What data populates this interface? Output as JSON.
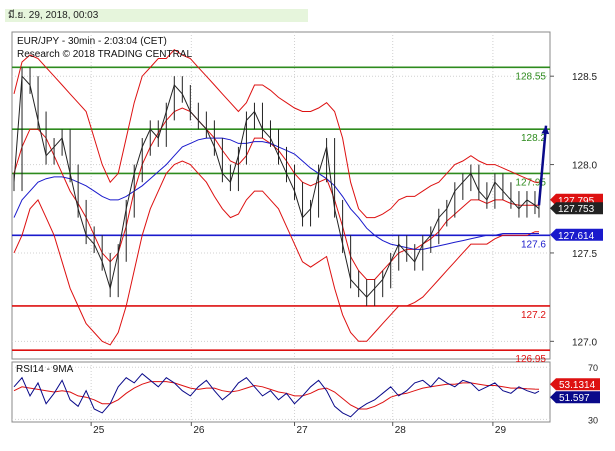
{
  "header": {
    "datestamp": "มี.ย. 29, 2018, 00:03"
  },
  "chart_data": {
    "type": "line",
    "title": "EUR/JPY - 30min - 2:03:04 (CET)",
    "subtitle": "Research © 2018 TRADING CENTRAL",
    "ylim": [
      126.9,
      128.75
    ],
    "yticks": [
      {
        "value": 128.5,
        "label": "128.5"
      },
      {
        "value": 128.0,
        "label": "128.0"
      },
      {
        "value": 127.5,
        "label": "127.5"
      },
      {
        "value": 127.0,
        "label": "127.0"
      }
    ],
    "xticks": [
      {
        "t": 0.19,
        "label": "25"
      },
      {
        "t": 1.19,
        "label": "26"
      },
      {
        "t": 2.22,
        "label": "27"
      },
      {
        "t": 3.2,
        "label": "28"
      },
      {
        "t": 4.2,
        "label": "29"
      }
    ],
    "xlim": [
      -0.6,
      4.77
    ],
    "levels": [
      {
        "value": 128.55,
        "label": "128.55",
        "color": "#2e8b1e",
        "kind": "resistance"
      },
      {
        "value": 128.2,
        "label": "128.2",
        "color": "#2e8b1e",
        "kind": "resistance"
      },
      {
        "value": 127.95,
        "label": "127.95",
        "color": "#2e8b1e",
        "kind": "resistance"
      },
      {
        "value": 127.6,
        "label": "127.6",
        "color": "#1a1acc",
        "kind": "pivot"
      },
      {
        "value": 127.2,
        "label": "127.2",
        "color": "#dd1111",
        "kind": "support"
      },
      {
        "value": 126.95,
        "label": "126.95",
        "color": "#dd1111",
        "kind": "support"
      }
    ],
    "price_tags": [
      {
        "value": 127.795,
        "label": "127.795",
        "color": "#dd1111"
      },
      {
        "value": 127.753,
        "label": "127.753",
        "color": "#222222"
      },
      {
        "value": 127.614,
        "label": "127.614",
        "color": "#1a1acc"
      }
    ],
    "arrow": {
      "from": {
        "t": 4.66,
        "y": 127.77
      },
      "to": {
        "t": 4.84,
        "y": 128.22
      },
      "color": "#0a0a8a"
    },
    "price_series": {
      "name": "EUR/JPY",
      "t": [
        -0.58,
        -0.5,
        -0.42,
        -0.34,
        -0.26,
        -0.18,
        -0.1,
        -0.02,
        0.06,
        0.14,
        0.22,
        0.3,
        0.38,
        0.46,
        0.54,
        0.62,
        0.7,
        0.78,
        0.86,
        0.94,
        1.02,
        1.1,
        1.18,
        1.26,
        1.34,
        1.42,
        1.5,
        1.58,
        1.66,
        1.74,
        1.82,
        1.9,
        1.98,
        2.06,
        2.14,
        2.22,
        2.3,
        2.38,
        2.46,
        2.54,
        2.62,
        2.7,
        2.78,
        2.86,
        2.94,
        3.02,
        3.1,
        3.18,
        3.26,
        3.34,
        3.42,
        3.5,
        3.58,
        3.66,
        3.74,
        3.82,
        3.9,
        3.98,
        4.06,
        4.14,
        4.22,
        4.3,
        4.38,
        4.46,
        4.54,
        4.62,
        4.66
      ],
      "close": [
        127.9,
        128.5,
        128.45,
        128.25,
        128.05,
        128.1,
        128.15,
        127.95,
        127.75,
        127.6,
        127.55,
        127.45,
        127.3,
        127.5,
        127.75,
        127.95,
        128.1,
        128.2,
        128.15,
        128.3,
        128.45,
        128.4,
        128.3,
        128.25,
        128.2,
        128.1,
        127.95,
        127.9,
        128.05,
        128.25,
        128.3,
        128.2,
        128.15,
        128.05,
        127.95,
        127.85,
        127.7,
        127.75,
        127.95,
        128.1,
        127.75,
        127.55,
        127.35,
        127.3,
        127.25,
        127.3,
        127.35,
        127.45,
        127.55,
        127.5,
        127.45,
        127.55,
        127.6,
        127.7,
        127.75,
        127.85,
        127.9,
        127.95,
        127.85,
        127.8,
        127.9,
        127.85,
        127.8,
        127.75,
        127.8,
        127.77,
        127.75
      ]
    },
    "bollinger": {
      "upper": [
        128.4,
        128.58,
        128.62,
        128.6,
        128.55,
        128.5,
        128.45,
        128.4,
        128.35,
        128.3,
        128.15,
        128.0,
        127.9,
        127.95,
        128.15,
        128.35,
        128.5,
        128.55,
        128.6,
        128.6,
        128.65,
        128.62,
        128.6,
        128.55,
        128.5,
        128.45,
        128.4,
        128.35,
        128.3,
        128.35,
        128.45,
        128.45,
        128.42,
        128.38,
        128.35,
        128.32,
        128.3,
        128.3,
        128.32,
        128.35,
        128.3,
        128.15,
        127.9,
        127.75,
        127.7,
        127.7,
        127.72,
        127.75,
        127.8,
        127.82,
        127.82,
        127.85,
        127.88,
        127.9,
        127.95,
        128.0,
        128.02,
        128.05,
        128.02,
        128.0,
        128.0,
        127.98,
        127.96,
        127.94,
        127.92,
        127.9,
        127.9
      ],
      "lower": [
        127.5,
        127.6,
        127.75,
        127.8,
        127.7,
        127.6,
        127.45,
        127.3,
        127.2,
        127.1,
        127.05,
        127.0,
        126.98,
        127.05,
        127.2,
        127.4,
        127.6,
        127.75,
        127.85,
        127.95,
        128.0,
        128.02,
        128.0,
        127.95,
        127.9,
        127.82,
        127.75,
        127.7,
        127.72,
        127.8,
        127.85,
        127.85,
        127.8,
        127.75,
        127.65,
        127.55,
        127.45,
        127.42,
        127.45,
        127.48,
        127.3,
        127.15,
        127.05,
        127.0,
        127.0,
        127.05,
        127.1,
        127.15,
        127.2,
        127.2,
        127.22,
        127.25,
        127.3,
        127.35,
        127.4,
        127.45,
        127.5,
        127.55,
        127.55,
        127.55,
        127.58,
        127.6,
        127.6,
        127.6,
        127.6,
        127.62,
        127.62
      ],
      "ma": [
        127.95,
        128.1,
        128.2,
        128.2,
        128.15,
        128.05,
        127.95,
        127.85,
        127.78,
        127.7,
        127.6,
        127.5,
        127.45,
        127.5,
        127.65,
        127.85,
        128.0,
        128.1,
        128.18,
        128.25,
        128.3,
        128.32,
        128.3,
        128.25,
        128.2,
        128.15,
        128.08,
        128.02,
        128.0,
        128.05,
        128.15,
        128.15,
        128.12,
        128.08,
        128.02,
        127.95,
        127.9,
        127.88,
        127.9,
        127.92,
        127.8,
        127.65,
        127.48,
        127.4,
        127.35,
        127.35,
        127.4,
        127.45,
        127.5,
        127.52,
        127.52,
        127.55,
        127.58,
        127.62,
        127.68,
        127.72,
        127.76,
        127.8,
        127.8,
        127.78,
        127.8,
        127.8,
        127.78,
        127.77,
        127.77,
        127.77,
        127.77
      ]
    },
    "ma_blue": {
      "name": "MA",
      "values": [
        127.7,
        127.8,
        127.85,
        127.9,
        127.92,
        127.93,
        127.93,
        127.92,
        127.9,
        127.88,
        127.85,
        127.82,
        127.8,
        127.8,
        127.82,
        127.85,
        127.88,
        127.92,
        127.96,
        128.0,
        128.05,
        128.1,
        128.12,
        128.14,
        128.15,
        128.15,
        128.15,
        128.14,
        128.12,
        128.12,
        128.13,
        128.13,
        128.12,
        128.1,
        128.08,
        128.06,
        128.02,
        127.98,
        127.95,
        127.92,
        127.88,
        127.82,
        127.75,
        127.7,
        127.64,
        127.6,
        127.57,
        127.55,
        127.54,
        127.53,
        127.52,
        127.52,
        127.53,
        127.54,
        127.55,
        127.56,
        127.57,
        127.58,
        127.59,
        127.6,
        127.6,
        127.61,
        127.61,
        127.61,
        127.61,
        127.61,
        127.61
      ]
    },
    "rsi": {
      "label": "RSI14 - 9MA",
      "ylim": [
        28,
        74
      ],
      "yticks": [
        {
          "value": 70,
          "label": "70"
        },
        {
          "value": 30,
          "label": "30"
        }
      ],
      "rsi_values": [
        55,
        62,
        48,
        58,
        42,
        50,
        60,
        45,
        40,
        52,
        38,
        35,
        42,
        55,
        62,
        58,
        65,
        60,
        55,
        62,
        58,
        52,
        48,
        55,
        60,
        52,
        45,
        50,
        58,
        62,
        55,
        48,
        52,
        45,
        50,
        42,
        48,
        55,
        60,
        52,
        40,
        35,
        32,
        38,
        42,
        45,
        50,
        55,
        48,
        52,
        58,
        60,
        55,
        62,
        58,
        55,
        60,
        58,
        52,
        55,
        58,
        52,
        50,
        55,
        52,
        50,
        51.597
      ],
      "ma_values": [
        52,
        55,
        54,
        53,
        52,
        51,
        52,
        51,
        48,
        47,
        45,
        42,
        42,
        45,
        50,
        54,
        57,
        59,
        59,
        59,
        58,
        56,
        54,
        53,
        54,
        54,
        52,
        51,
        52,
        54,
        56,
        55,
        53,
        51,
        50,
        48,
        48,
        50,
        53,
        54,
        51,
        46,
        41,
        38,
        38,
        40,
        43,
        47,
        49,
        50,
        52,
        54,
        55,
        56,
        57,
        57,
        58,
        58,
        57,
        56,
        56,
        55,
        54,
        54,
        53.5,
        53.2,
        53.1314
      ],
      "tags": [
        {
          "value": 53.1314,
          "label": "53.1314",
          "color": "#dd1111"
        },
        {
          "value": 51.597,
          "label": "51.597",
          "color": "#0a0a8a"
        }
      ]
    }
  }
}
